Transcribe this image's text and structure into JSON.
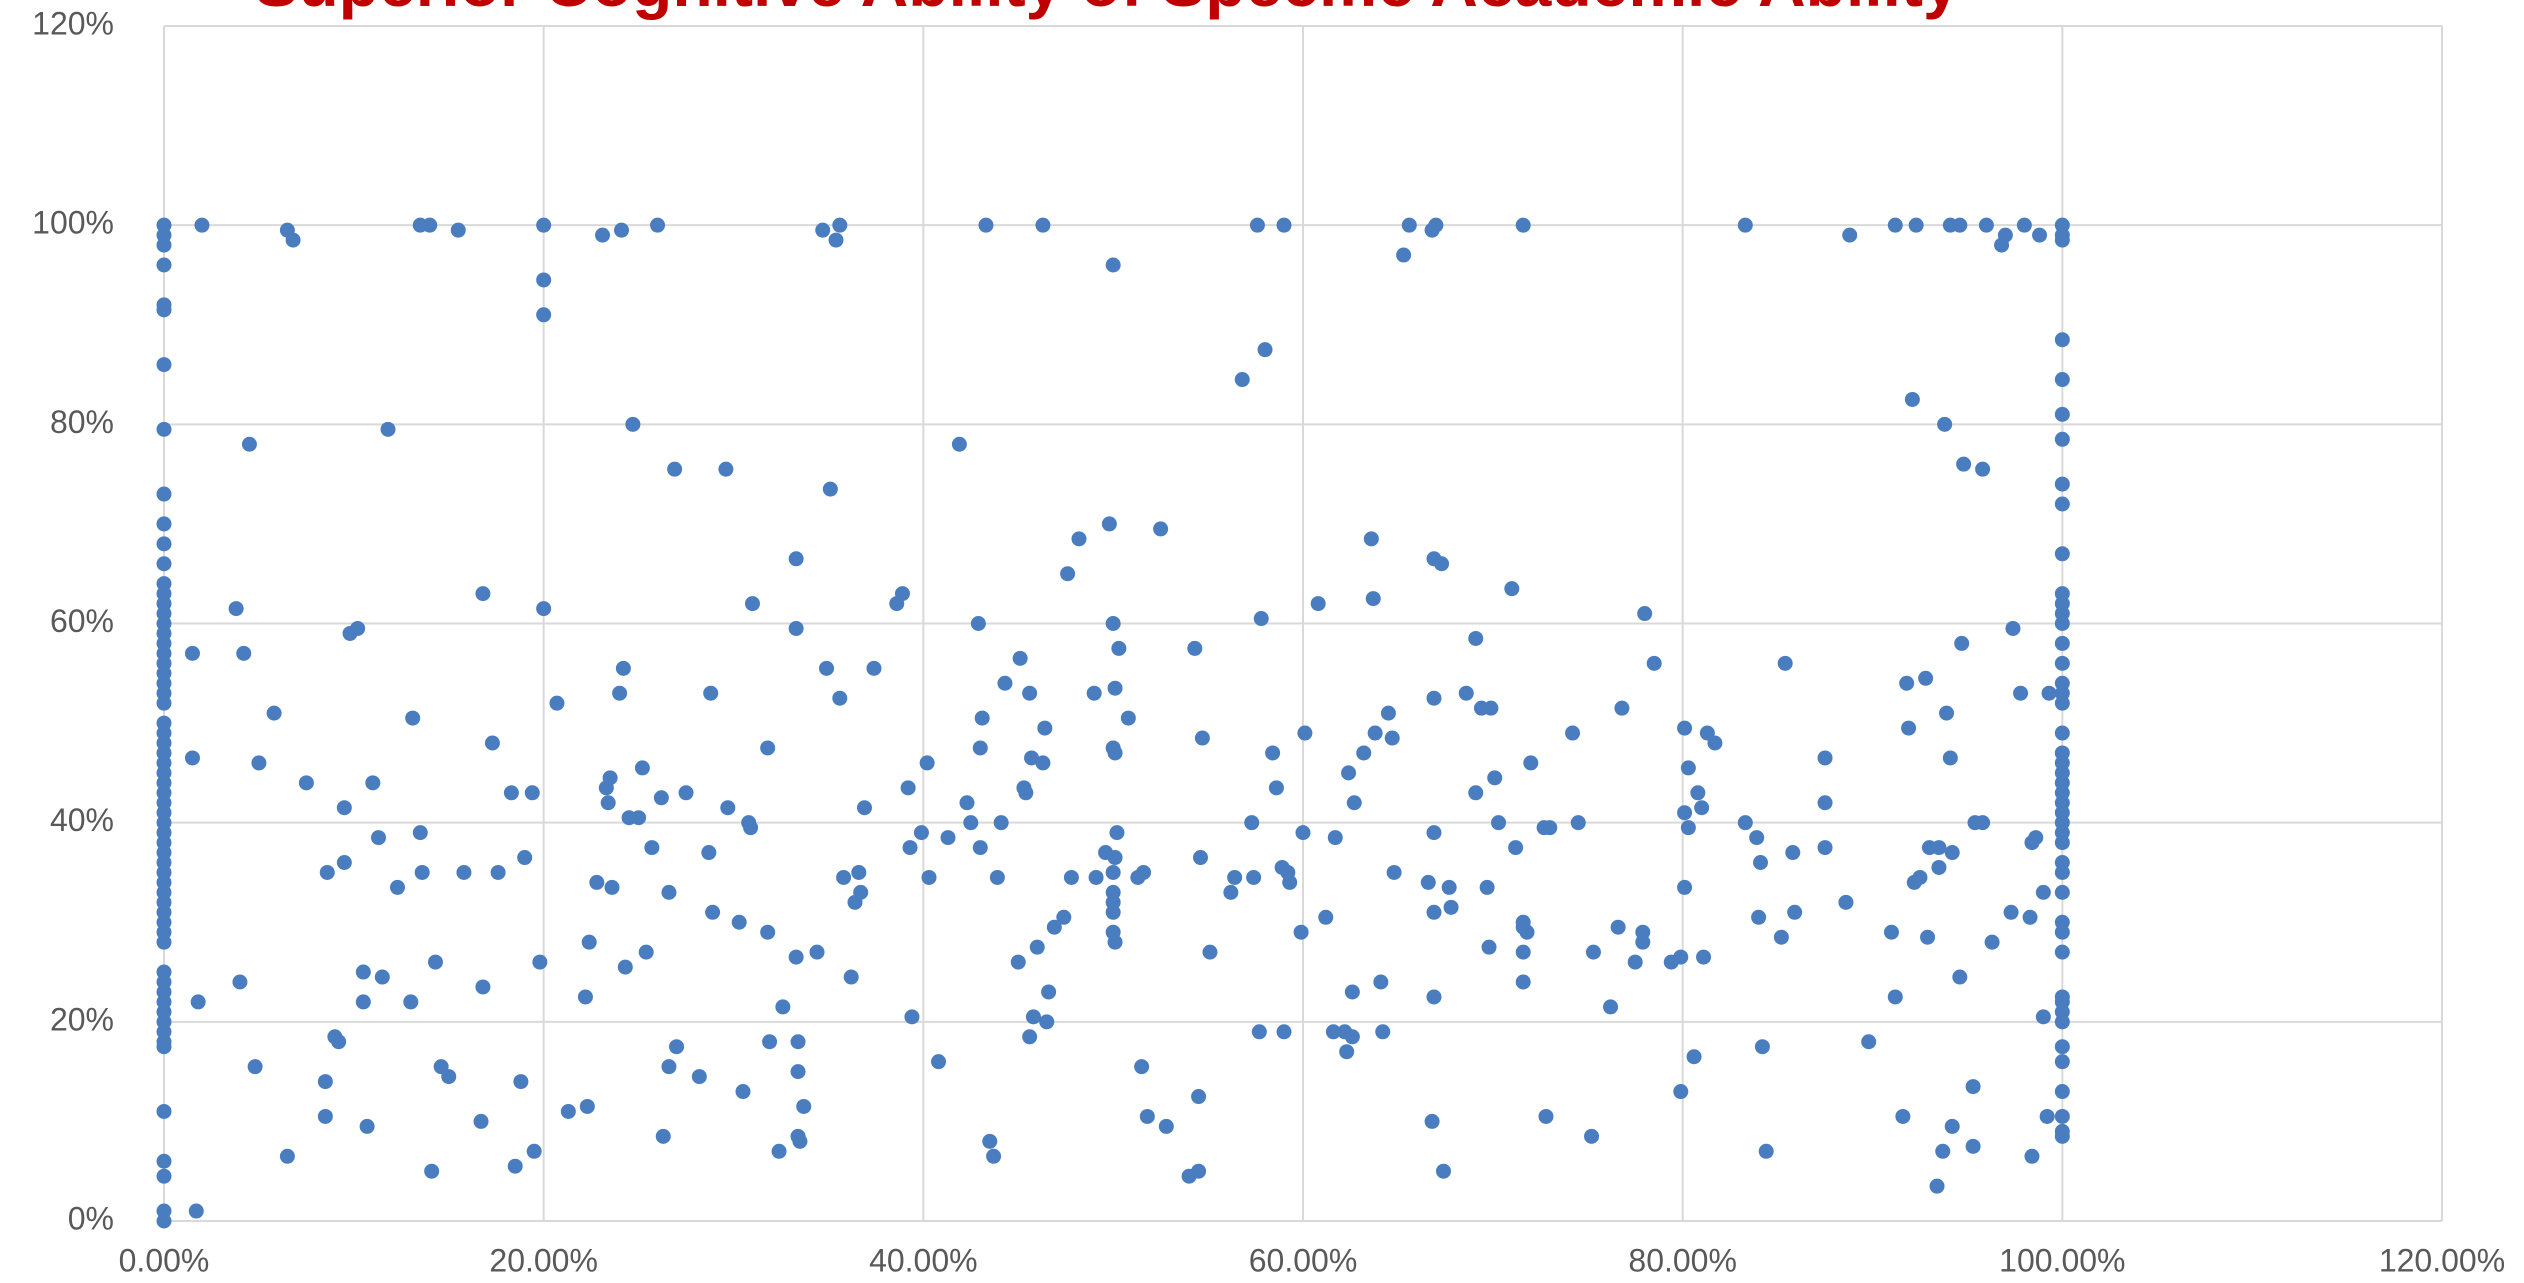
{
  "chart_data": {
    "type": "scatter",
    "title": "Superior Cognitive Ability of Specific Academic Ability",
    "color": "#4a7dbf",
    "grid": true,
    "xlim": [
      0,
      120
    ],
    "ylim": [
      0,
      120
    ],
    "xticks": [
      {
        "value": 0,
        "label": "0.00%"
      },
      {
        "value": 20,
        "label": "20.00%"
      },
      {
        "value": 40,
        "label": "40.00%"
      },
      {
        "value": 60,
        "label": "60.00%"
      },
      {
        "value": 80,
        "label": "80.00%"
      },
      {
        "value": 100,
        "label": "100.00%"
      },
      {
        "value": 120,
        "label": "120.00%"
      }
    ],
    "yticks": [
      {
        "value": 0,
        "label": "0%"
      },
      {
        "value": 20,
        "label": "20%"
      },
      {
        "value": 40,
        "label": "40%"
      },
      {
        "value": 60,
        "label": "60%"
      },
      {
        "value": 80,
        "label": "80%"
      },
      {
        "value": 100,
        "label": "100%"
      },
      {
        "value": 120,
        "label": "120%"
      }
    ],
    "x": [
      0,
      0,
      0,
      0,
      0,
      0,
      0,
      0,
      0,
      0,
      0,
      0,
      0,
      0,
      0,
      0,
      0,
      0,
      0,
      0,
      0,
      0,
      0,
      0,
      0,
      0,
      0,
      0,
      0,
      0,
      0,
      0,
      0,
      0,
      0,
      0,
      0,
      0,
      0,
      0,
      0,
      0,
      0,
      0,
      0,
      0,
      0,
      0,
      0,
      0,
      0,
      0,
      0,
      0,
      0,
      0,
      0,
      0,
      0,
      0,
      0,
      0,
      100,
      100,
      100,
      100,
      100,
      100,
      100,
      100,
      100,
      100,
      100,
      100,
      100,
      100,
      100,
      100,
      100,
      100,
      100,
      100,
      100,
      100,
      100,
      100,
      100,
      100,
      100,
      100,
      100,
      100,
      100,
      100,
      100,
      100,
      100,
      100,
      100,
      100,
      100,
      100,
      100,
      100,
      100,
      100,
      100,
      100,
      1.7,
      1.5,
      1.5,
      1.8,
      2,
      3.8,
      4,
      4.2,
      4.5,
      4.8,
      5,
      5.8,
      6.5,
      6.5,
      6.8,
      7.5,
      8.5,
      8.5,
      8.6,
      9,
      9.2,
      9.5,
      9.5,
      9.8,
      10.2,
      10.5,
      10.5,
      10.7,
      11,
      11.3,
      11.5,
      11.8,
      12.3,
      13,
      13.1,
      13.5,
      13.6,
      13.5,
      14,
      14.1,
      14.3,
      14.6,
      15,
      15.5,
      15.8,
      16.7,
      16.8,
      16.8,
      17.3,
      17.6,
      18.3,
      18.5,
      18.8,
      19,
      19.4,
      19.5,
      19.8,
      20,
      20,
      20,
      20,
      20.7,
      21.3,
      22.2,
      22.3,
      22.4,
      22.8,
      23.1,
      23.3,
      23.4,
      23.5,
      23.6,
      24,
      24.1,
      24.2,
      24.3,
      24.5,
      24.7,
      25,
      25.2,
      25.4,
      25.7,
      26,
      26.2,
      26.3,
      26.6,
      26.6,
      26.9,
      27,
      27.5,
      28.2,
      28.7,
      28.8,
      28.9,
      29.6,
      29.7,
      30.3,
      30.5,
      30.8,
      30.9,
      31,
      31.8,
      31.8,
      31.9,
      32.4,
      32.6,
      33.3,
      33.3,
      33.3,
      33.4,
      33.4,
      33.4,
      33.5,
      33.7,
      34.4,
      34.7,
      34.9,
      35.1,
      35.4,
      35.6,
      35.6,
      35.8,
      36.2,
      36.4,
      36.6,
      36.7,
      36.9,
      37.4,
      38.6,
      38.9,
      39.2,
      39.3,
      39.4,
      39.9,
      40.2,
      40.3,
      40.8,
      41.3,
      41.9,
      42.3,
      42.5,
      42.9,
      43,
      43.1,
      43,
      43.3,
      43.5,
      43.7,
      43.9,
      44.1,
      44.3,
      45,
      45.1,
      45.3,
      45.4,
      45.6,
      45.6,
      45.7,
      45.8,
      46,
      46.3,
      46.3,
      46.4,
      46.5,
      46.6,
      46.9,
      47.4,
      47.6,
      47.8,
      48.2,
      49,
      49.1,
      49.6,
      49.8,
      50,
      50,
      50,
      50.1,
      50,
      50,
      50,
      50,
      50,
      50.1,
      50.2,
      50.1,
      50.1,
      50.3,
      50.8,
      51.3,
      51.5,
      51.6,
      51.8,
      52.5,
      52.8,
      54,
      54.3,
      54.5,
      54.5,
      54.6,
      54.7,
      55.1,
      56.2,
      56.4,
      56.8,
      57.3,
      57.4,
      57.6,
      57.7,
      57.8,
      58,
      58.4,
      58.6,
      58.9,
      59,
      59,
      59.2,
      59.3,
      59.9,
      60,
      60.1,
      60.8,
      61.2,
      61.6,
      61.7,
      62.2,
      62.3,
      62.4,
      62.6,
      62.6,
      62.7,
      63.2,
      63.6,
      63.7,
      63.8,
      64.1,
      64.2,
      64.5,
      64.7,
      64.8,
      65.3,
      65.6,
      66.6,
      66.8,
      67,
      66.9,
      66.9,
      66.9,
      66.9,
      66.9,
      66.8,
      67.3,
      67.4,
      67.7,
      67.8,
      68.6,
      69.1,
      69.1,
      69.4,
      69.7,
      69.8,
      69.9,
      70.1,
      70.3,
      71,
      71.2,
      71.6,
      71.6,
      71.6,
      71.6,
      71.6,
      71.8,
      72,
      72.7,
      72.8,
      73,
      74.2,
      74.5,
      75.2,
      75.3,
      76.2,
      76.6,
      76.8,
      77.5,
      77.9,
      77.9,
      78,
      78.5,
      79.4,
      79.9,
      79.9,
      80.1,
      80.1,
      80.1,
      80.3,
      80.3,
      80.6,
      80.8,
      81.1,
      81,
      81.3,
      81.7,
      83.3,
      83.3,
      83.9,
      84,
      84.1,
      84.2,
      84.4,
      85.2,
      85.4,
      85.8,
      85.9,
      87.5,
      87.5,
      87.5,
      88.6,
      88.8,
      89.8,
      91,
      91.2,
      91.2,
      91.6,
      91.8,
      91.9,
      92.1,
      92.2,
      92.3,
      92.5,
      92.8,
      92.9,
      93,
      93.4,
      93.5,
      93.5,
      93.7,
      93.8,
      93.9,
      94.1,
      94.1,
      94.2,
      94.2,
      94.6,
      94.6,
      94.7,
      94.8,
      95.3,
      95.3,
      95.4,
      95.8,
      95.8,
      96,
      96.3,
      96.8,
      97,
      97.3,
      97.4,
      97.8,
      98,
      98.3,
      98.4,
      98.4,
      98.6,
      98.8,
      99,
      99,
      99.2,
      99.3
    ],
    "values": [
      0,
      1,
      4.5,
      6,
      11,
      17.5,
      18,
      19,
      20,
      21,
      22,
      23,
      24,
      25,
      28,
      29,
      30,
      31,
      32,
      33,
      34,
      35,
      36,
      37,
      38,
      39,
      40,
      41,
      42,
      43,
      44,
      45,
      46,
      47,
      48,
      49,
      50,
      52,
      53,
      54,
      55,
      56,
      57,
      58,
      59,
      60,
      61,
      62,
      63,
      64,
      66,
      68,
      70,
      73,
      79.5,
      86,
      91.5,
      92,
      96,
      98,
      99,
      100,
      8.5,
      9,
      10.5,
      13,
      16,
      17.5,
      20,
      21,
      22,
      22.5,
      27,
      29,
      30,
      33,
      35,
      36,
      38,
      39,
      40,
      41,
      42,
      43,
      44,
      45,
      46,
      47,
      49,
      52,
      53,
      54,
      56,
      58,
      60,
      61,
      62,
      63,
      67,
      72,
      74,
      78.5,
      81,
      84.5,
      88.5,
      98.5,
      99,
      100,
      1,
      46.5,
      57,
      22,
      100,
      61.5,
      24,
      57,
      78,
      15.5,
      46,
      51,
      6.5,
      99.5,
      98.5,
      44,
      10.5,
      14,
      35,
      18.5,
      18,
      41.5,
      36,
      59,
      59.5,
      22,
      25,
      9.5,
      44,
      38.5,
      24.5,
      79.5,
      33.5,
      22,
      50.5,
      39,
      35,
      100,
      100,
      5,
      26,
      15.5,
      14.5,
      99.5,
      35,
      10,
      23.5,
      63,
      48,
      35,
      43,
      5.5,
      14,
      36.5,
      43,
      7,
      26,
      100,
      94.5,
      91,
      61.5,
      52,
      11,
      22.5,
      11.5,
      28,
      34,
      99,
      43.5,
      42,
      44.5,
      33.5,
      53,
      99.5,
      55.5,
      25.5,
      40.5,
      80,
      40.5,
      45.5,
      27,
      37.5,
      100,
      42.5,
      8.5,
      33,
      15.5,
      75.5,
      17.5,
      43,
      14.5,
      37,
      53,
      31,
      75.5,
      41.5,
      30,
      13,
      40,
      39.5,
      62,
      29,
      47.5,
      18,
      7,
      21.5,
      66.5,
      59.5,
      26.5,
      18,
      15,
      8.5,
      8,
      11.5,
      27,
      99.5,
      55.5,
      73.5,
      98.5,
      100,
      52.5,
      34.5,
      24.5,
      32,
      35,
      33,
      41.5,
      55.5,
      62,
      63,
      43.5,
      37.5,
      20.5,
      39,
      46,
      34.5,
      16,
      38.5,
      78,
      42,
      40,
      60,
      47.5,
      50.5,
      37.5,
      100,
      8,
      6.5,
      34.5,
      40,
      54,
      26,
      56.5,
      43.5,
      43,
      18.5,
      53,
      46.5,
      20.5,
      27.5,
      100,
      46,
      49.5,
      20,
      23,
      29.5,
      30.5,
      65,
      34.5,
      68.5,
      53,
      34.5,
      37,
      70,
      47.5,
      96,
      60,
      36.5,
      35,
      33,
      32,
      31,
      29,
      28,
      39,
      47,
      53.5,
      57.5,
      50.5,
      34.5,
      15.5,
      35,
      10.5,
      69.5,
      9.5,
      4.5,
      57.5,
      5,
      12.5,
      36.5,
      48.5,
      27,
      33,
      34.5,
      84.5,
      40,
      34.5,
      100,
      19,
      60.5,
      87.5,
      47,
      43.5,
      35.5,
      100,
      19,
      35,
      34,
      29,
      39,
      49,
      62,
      30.5,
      19,
      38.5,
      19,
      17,
      45,
      18.5,
      23,
      42,
      47,
      68.5,
      62.5,
      49,
      24,
      19,
      51,
      48.5,
      35,
      97,
      100,
      34,
      99.5,
      100,
      66.5,
      52.5,
      39,
      31,
      22.5,
      10,
      66,
      5,
      33.5,
      31.5,
      53,
      43,
      58.5,
      51.5,
      33.5,
      27.5,
      51.5,
      44.5,
      40,
      63.5,
      37.5,
      100,
      30,
      29.5,
      27,
      24,
      29,
      46,
      39.5,
      10.5,
      39.5,
      49,
      40,
      8.5,
      27,
      21.5,
      29.5,
      51.5,
      26,
      29,
      28,
      61,
      56,
      26,
      26.5,
      13,
      33.5,
      41,
      49.5,
      39.5,
      45.5,
      16.5,
      43,
      26.5,
      41.5,
      49,
      48,
      100,
      40,
      38.5,
      30.5,
      36,
      17.5,
      7,
      28.5,
      56,
      37,
      31,
      46.5,
      42,
      37.5,
      32,
      99,
      18,
      29,
      22.5,
      100,
      10.5,
      54,
      49.5,
      82.5,
      34,
      100,
      34.5,
      54.5,
      28.5,
      37.5,
      3.5,
      37.5,
      35.5,
      7,
      80,
      51,
      100,
      46.5,
      37,
      9.5,
      100,
      24.5,
      58,
      76,
      13.5,
      7.5,
      40,
      75.5,
      40,
      100,
      28,
      98,
      99,
      31,
      59.5,
      53,
      100,
      30.5,
      38,
      6.5,
      38.5,
      99,
      20.5,
      33,
      10.5,
      53
    ]
  }
}
